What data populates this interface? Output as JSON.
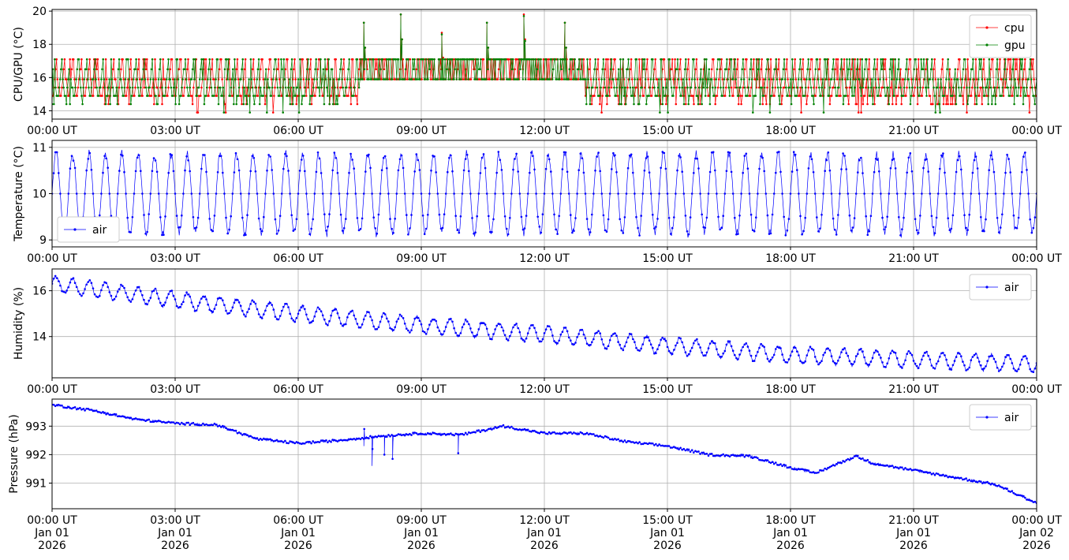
{
  "colors": {
    "cpu": "#ff0000",
    "gpu": "#008000",
    "air": "#0000ff",
    "grid": "#b0b0b0"
  },
  "chart_data": [
    {
      "type": "line",
      "ylabel": "CPU/GPU (°C)",
      "ylim": [
        13.5,
        20.1
      ],
      "yticks": [
        14,
        16,
        18,
        20
      ],
      "xlim_hours": [
        0,
        24
      ],
      "xtick_labels": [
        "00:00 UT",
        "03:00 UT",
        "06:00 UT",
        "09:00 UT",
        "12:00 UT",
        "15:00 UT",
        "18:00 UT",
        "21:00 UT",
        "00:00 UT"
      ],
      "legend": "top-right",
      "grid": true,
      "series": [
        {
          "name": "cpu",
          "color": "#ff0000",
          "description_values": {
            "min": 13.8,
            "max": 19.8,
            "typical_low": 14.9,
            "typical_high": 17.1
          },
          "spikes": [
            {
              "hour": 7.6,
              "value": 19.3
            },
            {
              "hour": 8.5,
              "value": 19.8
            },
            {
              "hour": 9.5,
              "value": 18.7
            },
            {
              "hour": 10.6,
              "value": 19.3
            },
            {
              "hour": 11.5,
              "value": 19.8
            },
            {
              "hour": 12.5,
              "value": 19.3
            }
          ]
        },
        {
          "name": "gpu",
          "color": "#008000",
          "description_values": {
            "min": 13.9,
            "max": 19.8,
            "typical_low": 14.9,
            "typical_high": 17.1
          },
          "spikes": [
            {
              "hour": 7.6,
              "value": 19.3
            },
            {
              "hour": 8.5,
              "value": 19.8
            },
            {
              "hour": 9.5,
              "value": 18.6
            },
            {
              "hour": 10.6,
              "value": 19.3
            },
            {
              "hour": 11.5,
              "value": 19.7
            },
            {
              "hour": 12.5,
              "value": 19.3
            }
          ]
        }
      ]
    },
    {
      "type": "line",
      "ylabel": "Temperature (°C)",
      "ylim": [
        8.85,
        11.15
      ],
      "yticks": [
        9,
        10,
        11
      ],
      "xlim_hours": [
        0,
        24
      ],
      "xtick_labels": [
        "00:00 UT",
        "03:00 UT",
        "06:00 UT",
        "09:00 UT",
        "12:00 UT",
        "15:00 UT",
        "18:00 UT",
        "21:00 UT",
        "00:00 UT"
      ],
      "legend": "bottom-left",
      "grid": true,
      "series": [
        {
          "name": "air",
          "color": "#0000ff",
          "oscillation": {
            "center": 10.0,
            "amplitude": 0.85,
            "period_hours": 0.4,
            "min": 8.95,
            "max": 11.1
          }
        }
      ]
    },
    {
      "type": "line",
      "ylabel": "Humidity (%)",
      "ylim": [
        12.2,
        16.95
      ],
      "yticks": [
        14,
        16
      ],
      "xlim_hours": [
        0,
        24
      ],
      "xtick_labels": [
        "00:00 UT",
        "03:00 UT",
        "06:00 UT",
        "09:00 UT",
        "12:00 UT",
        "15:00 UT",
        "18:00 UT",
        "21:00 UT",
        "00:00 UT"
      ],
      "legend": "top-right",
      "grid": true,
      "series": [
        {
          "name": "air",
          "color": "#0000ff",
          "trend": [
            {
              "hour": 0,
              "value": 16.3
            },
            {
              "hour": 3,
              "value": 15.6
            },
            {
              "hour": 6,
              "value": 15.0
            },
            {
              "hour": 9,
              "value": 14.5
            },
            {
              "hour": 12,
              "value": 14.1
            },
            {
              "hour": 15,
              "value": 13.6
            },
            {
              "hour": 18,
              "value": 13.2
            },
            {
              "hour": 21,
              "value": 13.0
            },
            {
              "hour": 24,
              "value": 12.8
            }
          ],
          "ripple_amplitude": 0.35,
          "period_hours": 0.4
        }
      ]
    },
    {
      "type": "line",
      "ylabel": "Pressure (hPa)",
      "ylim": [
        990.1,
        993.95
      ],
      "yticks": [
        991,
        992,
        993
      ],
      "xlim_hours": [
        0,
        24
      ],
      "xtick_labels": [
        "00:00 UT\nJan 01\n2026",
        "03:00 UT\nJan 01\n2026",
        "06:00 UT\nJan 01\n2026",
        "09:00 UT\nJan 01\n2026",
        "12:00 UT\nJan 01\n2026",
        "15:00 UT\nJan 01\n2026",
        "18:00 UT\nJan 01\n2026",
        "21:00 UT\nJan 01\n2026",
        "00:00 UT\nJan 02\n2026"
      ],
      "legend": "top-right",
      "grid": true,
      "series": [
        {
          "name": "air",
          "color": "#0000ff",
          "trend": [
            {
              "hour": 0,
              "value": 993.75
            },
            {
              "hour": 1,
              "value": 993.55
            },
            {
              "hour": 2,
              "value": 993.25
            },
            {
              "hour": 3,
              "value": 993.1
            },
            {
              "hour": 4,
              "value": 993.05
            },
            {
              "hour": 5,
              "value": 992.55
            },
            {
              "hour": 6,
              "value": 992.4
            },
            {
              "hour": 7,
              "value": 992.5
            },
            {
              "hour": 8,
              "value": 992.65
            },
            {
              "hour": 9,
              "value": 992.75
            },
            {
              "hour": 10,
              "value": 992.7
            },
            {
              "hour": 11,
              "value": 993.0
            },
            {
              "hour": 12,
              "value": 992.75
            },
            {
              "hour": 13,
              "value": 992.75
            },
            {
              "hour": 14,
              "value": 992.45
            },
            {
              "hour": 15,
              "value": 992.3
            },
            {
              "hour": 16,
              "value": 992.0
            },
            {
              "hour": 17,
              "value": 991.95
            },
            {
              "hour": 18,
              "value": 991.55
            },
            {
              "hour": 18.6,
              "value": 991.35
            },
            {
              "hour": 19.6,
              "value": 991.95
            },
            {
              "hour": 20,
              "value": 991.7
            },
            {
              "hour": 21,
              "value": 991.45
            },
            {
              "hour": 22,
              "value": 991.2
            },
            {
              "hour": 23,
              "value": 990.95
            },
            {
              "hour": 24,
              "value": 990.3
            }
          ],
          "dips": [
            {
              "hour": 7.8,
              "value": 991.6
            },
            {
              "hour": 8.1,
              "value": 992.0
            },
            {
              "hour": 8.3,
              "value": 991.85
            },
            {
              "hour": 9.9,
              "value": 992.05
            },
            {
              "hour": 7.6,
              "value": 992.3
            }
          ]
        }
      ]
    }
  ]
}
